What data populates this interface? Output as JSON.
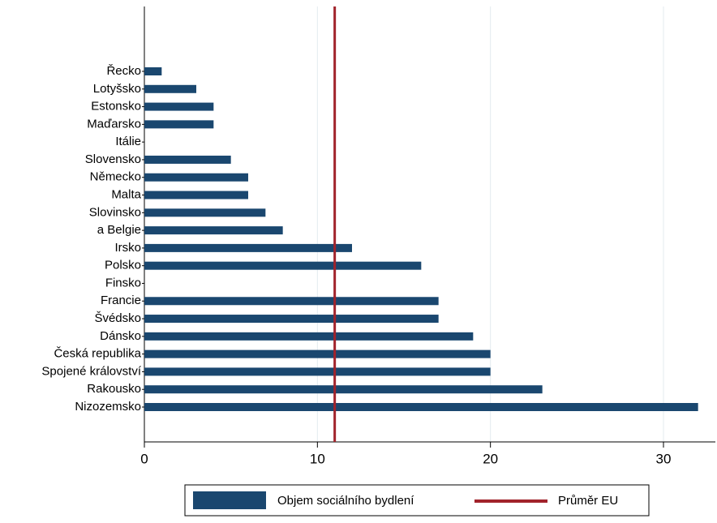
{
  "chart_data": {
    "type": "barh",
    "categories": [
      "Řecko",
      "Lotyšsko",
      "Estonsko",
      "Maďarsko",
      "Itálie",
      "Slovensko",
      "Německo",
      "Malta",
      "Slovinsko",
      "a Belgie",
      "Irsko",
      "Polsko",
      "Finsko",
      "Francie",
      "Švédsko",
      "Dánsko",
      "Česká republika",
      "Spojené království",
      "Rakousko",
      "Nizozemsko"
    ],
    "series": [
      {
        "name": "Objem sociálního bydlení",
        "color": "#1a476f",
        "values": [
          1,
          3,
          4,
          4,
          null,
          5,
          6,
          6,
          7,
          8,
          12,
          16,
          null,
          17,
          17,
          19,
          20,
          20,
          23,
          32
        ]
      }
    ],
    "reference_line": {
      "name": "Průměr EU",
      "value": 11,
      "color": "#a1232b"
    },
    "xlim": [
      0,
      33
    ],
    "xticks": [
      0,
      10,
      20,
      30
    ],
    "grid": true,
    "legend": "bottom"
  }
}
